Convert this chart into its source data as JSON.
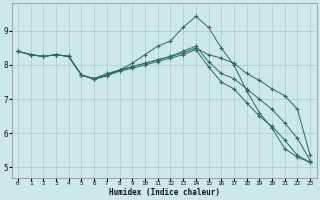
{
  "xlabel": "Humidex (Indice chaleur)",
  "xlim": [
    -0.5,
    23.5
  ],
  "ylim": [
    4.7,
    9.8
  ],
  "xticks": [
    0,
    1,
    2,
    3,
    4,
    5,
    6,
    7,
    8,
    9,
    10,
    11,
    12,
    13,
    14,
    15,
    16,
    17,
    18,
    19,
    20,
    21,
    22,
    23
  ],
  "yticks": [
    5,
    6,
    7,
    8,
    9
  ],
  "background_color": "#cce8e8",
  "grid_color": "#aacccc",
  "line_color": "#2a6b5e",
  "lines": [
    {
      "x": [
        0,
        1,
        2,
        3,
        4,
        5,
        6,
        7,
        8,
        9,
        10,
        11,
        12,
        13,
        14,
        15,
        16,
        17,
        18,
        19,
        20,
        21,
        22,
        23
      ],
      "y": [
        8.4,
        8.3,
        8.25,
        8.3,
        8.25,
        7.7,
        7.6,
        7.75,
        7.85,
        8.05,
        8.3,
        8.55,
        8.7,
        9.1,
        9.42,
        9.1,
        8.5,
        8.0,
        7.25,
        6.6,
        6.15,
        5.55,
        5.3,
        5.15
      ]
    },
    {
      "x": [
        0,
        1,
        2,
        3,
        4,
        5,
        6,
        7,
        8,
        9,
        10,
        11,
        12,
        13,
        14,
        15,
        16,
        17,
        18,
        19,
        20,
        21,
        22,
        23
      ],
      "y": [
        8.4,
        8.3,
        8.25,
        8.3,
        8.25,
        7.7,
        7.6,
        7.7,
        7.85,
        7.95,
        8.05,
        8.15,
        8.25,
        8.35,
        8.5,
        8.3,
        8.2,
        8.05,
        7.75,
        7.55,
        7.3,
        7.1,
        6.7,
        5.35
      ]
    },
    {
      "x": [
        0,
        1,
        2,
        3,
        4,
        5,
        6,
        7,
        8,
        9,
        10,
        11,
        12,
        13,
        14,
        15,
        16,
        17,
        18,
        19,
        20,
        21,
        22,
        23
      ],
      "y": [
        8.4,
        8.3,
        8.25,
        8.3,
        8.25,
        7.7,
        7.6,
        7.7,
        7.85,
        7.95,
        8.05,
        8.15,
        8.25,
        8.4,
        8.55,
        8.1,
        7.75,
        7.6,
        7.3,
        7.0,
        6.7,
        6.3,
        5.85,
        5.2
      ]
    },
    {
      "x": [
        0,
        1,
        2,
        3,
        4,
        5,
        6,
        7,
        8,
        9,
        10,
        11,
        12,
        13,
        14,
        15,
        16,
        17,
        18,
        19,
        20,
        21,
        22,
        23
      ],
      "y": [
        8.4,
        8.3,
        8.25,
        8.3,
        8.25,
        7.7,
        7.58,
        7.68,
        7.82,
        7.9,
        8.0,
        8.1,
        8.2,
        8.3,
        8.45,
        7.95,
        7.5,
        7.3,
        6.9,
        6.5,
        6.2,
        5.8,
        5.35,
        5.15
      ]
    }
  ]
}
